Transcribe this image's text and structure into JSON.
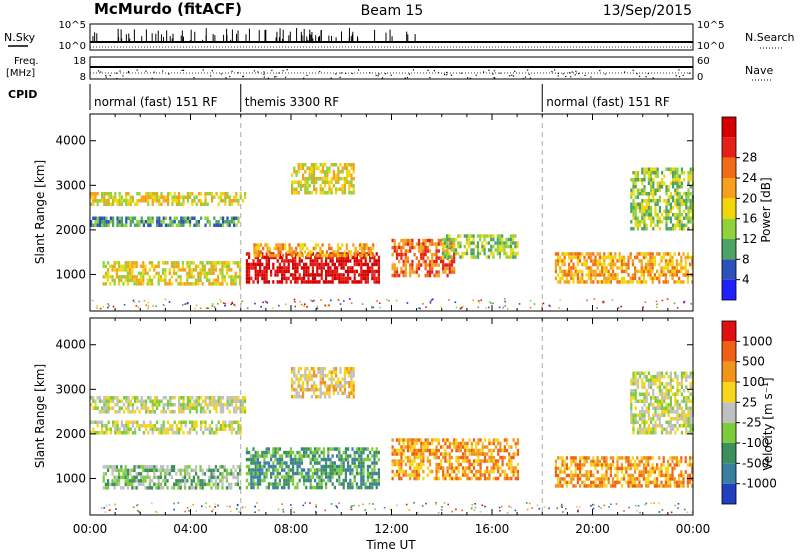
{
  "header": {
    "station": "McMurdo (fitACF)",
    "beam": "Beam 15",
    "date": "13/Sep/2015"
  },
  "strip_labels": {
    "nsky": "N.Sky",
    "nsearch": "N.Search",
    "freq_line1": "Freq.",
    "freq_line2": "[MHz]",
    "nave": "Nave",
    "cpid": "CPID"
  },
  "strip_ticks": {
    "nsky_left": [
      "10^5",
      "10^0"
    ],
    "nsky_right": [
      "10^5",
      "10^0"
    ],
    "freq_left": [
      "18",
      "8"
    ],
    "nave_right": [
      "60",
      "0"
    ]
  },
  "cpid_segments": [
    {
      "label": "normal (fast) 151 RF",
      "start_h": 0.0,
      "end_h": 6.0
    },
    {
      "label": "themis 3300 RF",
      "start_h": 6.0,
      "end_h": 18.0
    },
    {
      "label": "normal (fast) 151 RF",
      "start_h": 18.0,
      "end_h": 24.0
    }
  ],
  "chart_data": [
    {
      "type": "heatmap",
      "title": "",
      "xlabel": "Time UT",
      "ylabel": "Slant Range [km]",
      "x_unit": "hours UT",
      "xlim": [
        0,
        24
      ],
      "ylim": [
        180,
        4600
      ],
      "x_ticks": [
        "00:00",
        "04:00",
        "08:00",
        "12:00",
        "16:00",
        "20:00",
        "00:00"
      ],
      "y_ticks": [
        "1000",
        "2000",
        "3000",
        "4000"
      ],
      "colorbar": {
        "label": "Power [dB]",
        "ticks": [
          "4",
          "8",
          "12",
          "16",
          "20",
          "24",
          "28"
        ],
        "colors": [
          "#1f1fff",
          "#2a52b8",
          "#4fa265",
          "#91d23b",
          "#f0d70a",
          "#f6a01c",
          "#f26a16",
          "#e42019",
          "#d40000"
        ]
      },
      "regions": [
        {
          "t0": 0.0,
          "t1": 6.2,
          "r0": 2550,
          "r1": 2850,
          "level": 4
        },
        {
          "t0": 0.0,
          "t1": 6.0,
          "r0": 2100,
          "r1": 2300,
          "level": 2
        },
        {
          "t0": 0.5,
          "t1": 6.0,
          "r0": 800,
          "r1": 1300,
          "level": 4
        },
        {
          "t0": 6.2,
          "t1": 11.5,
          "r0": 800,
          "r1": 1500,
          "level": 8
        },
        {
          "t0": 6.5,
          "t1": 11.3,
          "r0": 1400,
          "r1": 1700,
          "level": 5
        },
        {
          "t0": 8.0,
          "t1": 10.5,
          "r0": 2800,
          "r1": 3500,
          "level": 4
        },
        {
          "t0": 12.0,
          "t1": 14.5,
          "r0": 1000,
          "r1": 1800,
          "level": 6
        },
        {
          "t0": 14.0,
          "t1": 17.0,
          "r0": 1400,
          "r1": 1900,
          "level": 3
        },
        {
          "t0": 18.5,
          "t1": 24.0,
          "r0": 800,
          "r1": 1500,
          "level": 5
        },
        {
          "t0": 21.5,
          "t1": 24.0,
          "r0": 2000,
          "r1": 3400,
          "level": 3
        }
      ]
    },
    {
      "type": "heatmap",
      "title": "",
      "xlabel": "Time UT",
      "ylabel": "Slant Range [km]",
      "x_unit": "hours UT",
      "xlim": [
        0,
        24
      ],
      "ylim": [
        180,
        4600
      ],
      "x_ticks": [
        "00:00",
        "04:00",
        "08:00",
        "12:00",
        "16:00",
        "20:00",
        "00:00"
      ],
      "y_ticks": [
        "1000",
        "2000",
        "3000",
        "4000"
      ],
      "colorbar": {
        "label": "Velocity [m s⁻¹]",
        "ticks": [
          "1000",
          "500",
          "100",
          "25",
          "-25",
          "-100",
          "-500",
          "-1000"
        ],
        "colors": [
          "#2040c0",
          "#3a7ea0",
          "#3c8f5a",
          "#7ccc3c",
          "#c0c0c0",
          "#f6d51a",
          "#f2941a",
          "#f06014",
          "#e01010"
        ]
      },
      "regions": [
        {
          "t0": 0.0,
          "t1": 6.2,
          "r0": 2500,
          "r1": 2850,
          "level": 4
        },
        {
          "t0": 0.0,
          "t1": 6.0,
          "r0": 2050,
          "r1": 2300,
          "level": 4
        },
        {
          "t0": 0.5,
          "t1": 6.0,
          "r0": 800,
          "r1": 1300,
          "level": 3
        },
        {
          "t0": 6.2,
          "t1": 11.5,
          "r0": 800,
          "r1": 1700,
          "level": 2
        },
        {
          "t0": 8.0,
          "t1": 10.5,
          "r0": 2800,
          "r1": 3500,
          "level": 5
        },
        {
          "t0": 12.0,
          "t1": 17.0,
          "r0": 1000,
          "r1": 1900,
          "level": 6
        },
        {
          "t0": 18.5,
          "t1": 24.0,
          "r0": 800,
          "r1": 1500,
          "level": 6
        },
        {
          "t0": 21.5,
          "t1": 24.0,
          "r0": 2000,
          "r1": 3400,
          "level": 4
        }
      ]
    }
  ]
}
